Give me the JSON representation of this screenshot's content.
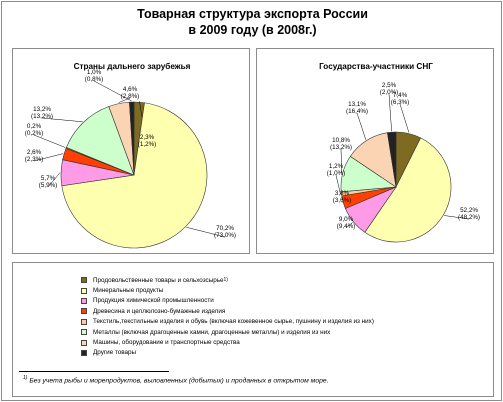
{
  "title_line1": "Товарная структура экспорта России",
  "title_line2": "в 2009 году (в 2008г.)",
  "colors": [
    "#7f6a22",
    "#ffffb0",
    "#ff9ae6",
    "#ff4000",
    "#ffcc99",
    "#ccffcc",
    "#fbd4b4",
    "#222222"
  ],
  "legend": {
    "items": [
      {
        "label": "Продовольственные товары и сельхозсырье",
        "sup": "1)"
      },
      {
        "label": "Минеральные продукты",
        "sup": ""
      },
      {
        "label": "Продукция химической промышленности",
        "sup": ""
      },
      {
        "label": "Древесина и целлюлозно-бумажные изделия",
        "sup": ""
      },
      {
        "label": "Текстиль,текстильные изделия и обувь (включая кожевенное сырье, пушнину и изделия из них)",
        "sup": ""
      },
      {
        "label": "Металлы (включая драгоценные камни, драгоценные металлы) и изделия из них",
        "sup": ""
      },
      {
        "label": "Машины, оборудование и транспортные средства",
        "sup": ""
      },
      {
        "label": "Другие товары",
        "sup": ""
      }
    ]
  },
  "footnote": {
    "sup": "1)",
    "text": " Без учета рыбы и морепродуктов, выловленных (добытых) и проданных в открытом море."
  },
  "chart_data": [
    {
      "type": "pie",
      "title": "Страны дальнего зарубежья",
      "categories": [
        "Продовольственные товары и сельхозсырье",
        "Минеральные продукты",
        "Продукция химической промышленности",
        "Древесина и целлюлозно-бумажные изделия",
        "Текстиль,текстильные изделия и обувь",
        "Металлы",
        "Машины, оборудование и транспортные средства",
        "Другие товары"
      ],
      "values": [
        2.3,
        70.2,
        5.7,
        2.6,
        0.2,
        13.2,
        4.6,
        1.0
      ],
      "values_2008": [
        1.2,
        73.0,
        5.9,
        2.3,
        0.2,
        13.2,
        2.8,
        0.8
      ],
      "labels": [
        {
          "now": "2,3%",
          "prev": "(1,2%)"
        },
        {
          "now": "70,2%",
          "prev": "(73,0%)"
        },
        {
          "now": "5,7%",
          "prev": "(5,9%)"
        },
        {
          "now": "2,6%",
          "prev": "(2,3%)"
        },
        {
          "now": "0,2%",
          "prev": "(0,2%)"
        },
        {
          "now": "13,2%",
          "prev": "(13,2%)"
        },
        {
          "now": "4,6%",
          "prev": "(2,8%)"
        },
        {
          "now": "1,0%",
          "prev": "(0,8%)"
        }
      ]
    },
    {
      "type": "pie",
      "title": "Государства-участники СНГ",
      "categories": [
        "Продовольственные товары и сельхозсырье",
        "Минеральные продукты",
        "Продукция химической промышленности",
        "Древесина и целлюлозно-бумажные изделия",
        "Текстиль,текстильные изделия и обувь",
        "Металлы",
        "Машины, оборудование и транспортные средства",
        "Другие товары"
      ],
      "values": [
        7.4,
        52.2,
        9.0,
        3.8,
        1.2,
        10.8,
        13.1,
        2.5
      ],
      "values_2008": [
        6.3,
        48.2,
        9.4,
        3.6,
        1.0,
        13.2,
        16.4,
        2.0
      ],
      "labels": [
        {
          "now": "7,4%",
          "prev": "(6,3%)"
        },
        {
          "now": "52,2%",
          "prev": "(48,2%)"
        },
        {
          "now": "9,0%",
          "prev": "(9,4%)"
        },
        {
          "now": "3,8%",
          "prev": "(3,6%)"
        },
        {
          "now": "1,2%",
          "prev": "(1,0%)"
        },
        {
          "now": "10,8%",
          "prev": "(13,2%)"
        },
        {
          "now": "13,1%",
          "prev": "(16,4%)"
        },
        {
          "now": "2,5%",
          "prev": "(2,0%)"
        }
      ]
    }
  ]
}
